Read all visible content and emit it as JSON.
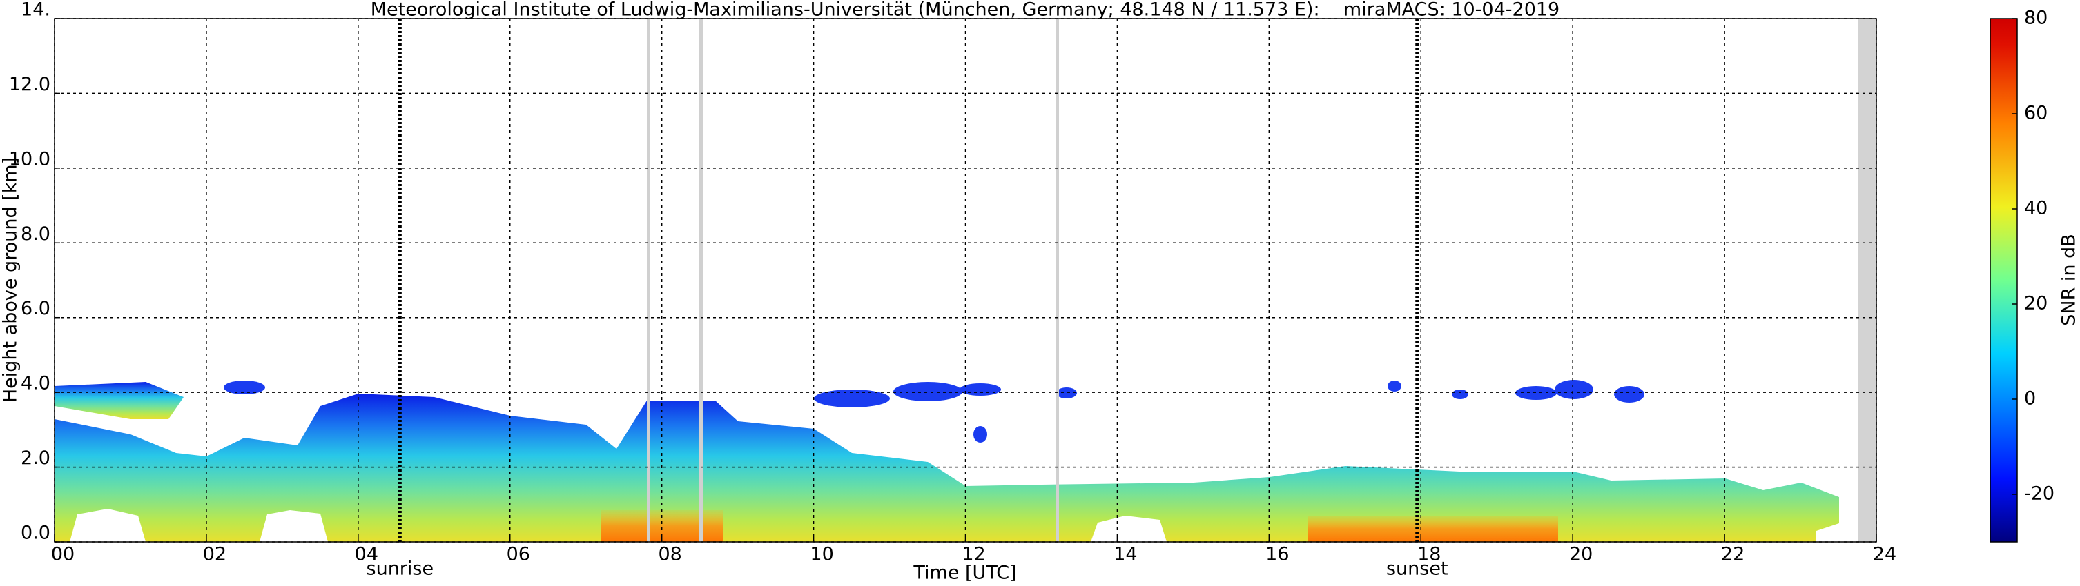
{
  "chart_data": {
    "type": "heatmap",
    "title": "Meteorological Institute of Ludwig-Maximilians-Universität (München, Germany; 48.148 N / 11.573 E):    miraMACS: 10-04-2019",
    "x_label": "Time [UTC]",
    "y_label": "Height above ground [km]",
    "xlim": [
      0,
      24
    ],
    "xticks": [
      {
        "value": 0,
        "label": "00"
      },
      {
        "value": 2,
        "label": "02"
      },
      {
        "value": 4,
        "label": "04"
      },
      {
        "value": 6,
        "label": "06"
      },
      {
        "value": 8,
        "label": "08"
      },
      {
        "value": 10,
        "label": "10"
      },
      {
        "value": 12,
        "label": "12"
      },
      {
        "value": 14,
        "label": "14"
      },
      {
        "value": 16,
        "label": "16"
      },
      {
        "value": 18,
        "label": "18"
      },
      {
        "value": 20,
        "label": "20"
      },
      {
        "value": 22,
        "label": "22"
      },
      {
        "value": 24,
        "label": "24"
      }
    ],
    "ylim": [
      0,
      14
    ],
    "yticks": [
      {
        "value": 0,
        "label": "0.0"
      },
      {
        "value": 2,
        "label": "2.0"
      },
      {
        "value": 4,
        "label": "4.0"
      },
      {
        "value": 6,
        "label": "6.0"
      },
      {
        "value": 8,
        "label": "8.0"
      },
      {
        "value": 10,
        "label": "10.0"
      },
      {
        "value": 12,
        "label": "12.0"
      },
      {
        "value": 14,
        "label": "14."
      }
    ],
    "grid": true,
    "colorbar": {
      "label": "SNR in dB",
      "lim": [
        -30,
        80
      ],
      "ticks": [
        -20,
        0,
        20,
        40,
        60,
        80
      ]
    },
    "annotations": [
      {
        "text": "sunrise",
        "x": 4.55
      },
      {
        "text": "sunset",
        "x": 17.95
      }
    ]
  }
}
